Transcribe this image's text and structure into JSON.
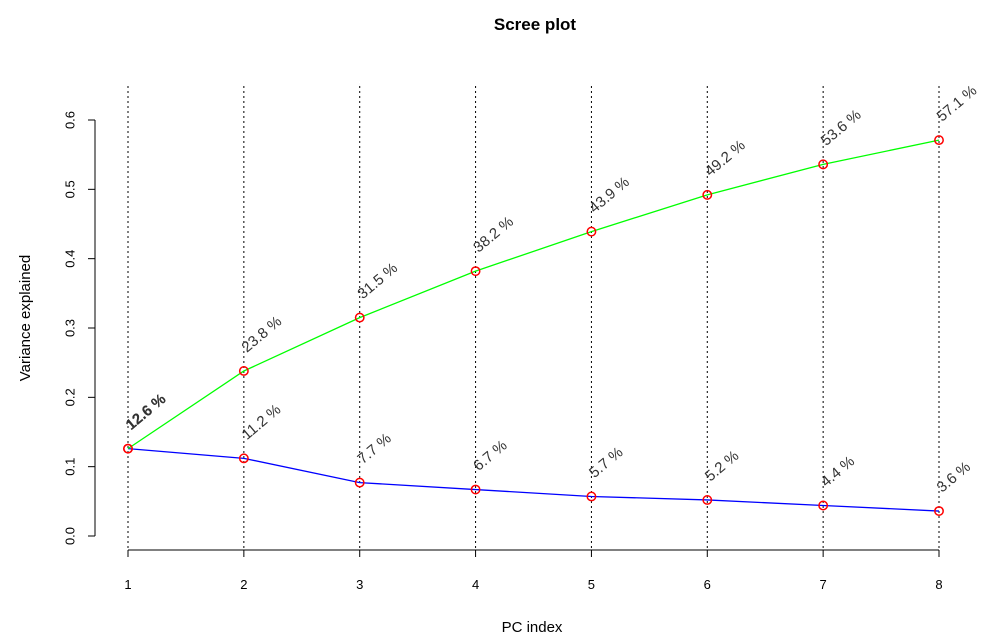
{
  "chart_data": {
    "type": "line",
    "title": "Scree plot",
    "xlabel": "PC index",
    "ylabel": "Variance explained",
    "x": [
      1,
      2,
      3,
      4,
      5,
      6,
      7,
      8
    ],
    "xlim": [
      1,
      8
    ],
    "ylim": [
      0,
      0.6
    ],
    "yticks": [
      "0.0",
      "0.1",
      "0.2",
      "0.3",
      "0.4",
      "0.5",
      "0.6"
    ],
    "grid": "vertical dotted lines at each x tick",
    "series": [
      {
        "values": [
          0.126,
          0.112,
          0.077,
          0.067,
          0.057,
          0.052,
          0.044,
          0.036
        ],
        "labels": [
          "12.6 %",
          "11.2 %",
          "7.7 %",
          "6.7 %",
          "5.7 %",
          "5.2 %",
          "4.4 %",
          "3.6 %"
        ],
        "color": "#0000ff",
        "marker_color": "#ff0000"
      },
      {
        "values": [
          0.126,
          0.238,
          0.315,
          0.382,
          0.439,
          0.492,
          0.536,
          0.571
        ],
        "labels": [
          "12.6 %",
          "23.8 %",
          "31.5 %",
          "38.2 %",
          "43.9 %",
          "49.2 %",
          "53.6 %",
          "57.1 %"
        ],
        "color": "#00ff00",
        "marker_color": "#ff0000"
      }
    ]
  }
}
